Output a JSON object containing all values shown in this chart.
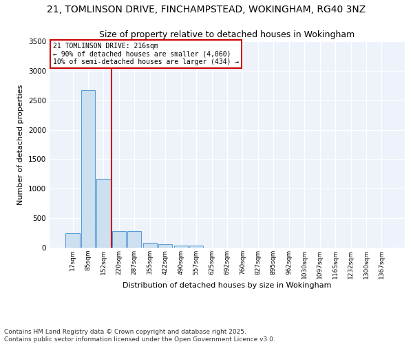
{
  "title": "21, TOMLINSON DRIVE, FINCHAMPSTEAD, WOKINGHAM, RG40 3NZ",
  "subtitle": "Size of property relative to detached houses in Wokingham",
  "xlabel": "Distribution of detached houses by size in Wokingham",
  "ylabel": "Number of detached properties",
  "bar_color": "#cce0f0",
  "bar_edge_color": "#5b9bd5",
  "background_color": "#eef3fb",
  "grid_color": "#ffffff",
  "ylim": [
    0,
    3500
  ],
  "yticks": [
    0,
    500,
    1000,
    1500,
    2000,
    2500,
    3000,
    3500
  ],
  "bin_labels": [
    "17sqm",
    "85sqm",
    "152sqm",
    "220sqm",
    "287sqm",
    "355sqm",
    "422sqm",
    "490sqm",
    "557sqm",
    "625sqm",
    "692sqm",
    "760sqm",
    "827sqm",
    "895sqm",
    "962sqm",
    "1030sqm",
    "1097sqm",
    "1165sqm",
    "1232sqm",
    "1300sqm",
    "1367sqm"
  ],
  "bar_values": [
    250,
    2670,
    1170,
    280,
    285,
    85,
    60,
    35,
    35,
    0,
    0,
    0,
    0,
    0,
    0,
    0,
    0,
    0,
    0,
    0,
    0
  ],
  "vline_x": 2.5,
  "annotation_text": "21 TOMLINSON DRIVE: 216sqm\n← 90% of detached houses are smaller (4,060)\n10% of semi-detached houses are larger (434) →",
  "annotation_color": "#cc0000",
  "footnote1": "Contains HM Land Registry data © Crown copyright and database right 2025.",
  "footnote2": "Contains public sector information licensed under the Open Government Licence v3.0.",
  "title_fontsize": 10,
  "subtitle_fontsize": 9,
  "footnote_fontsize": 6.5
}
